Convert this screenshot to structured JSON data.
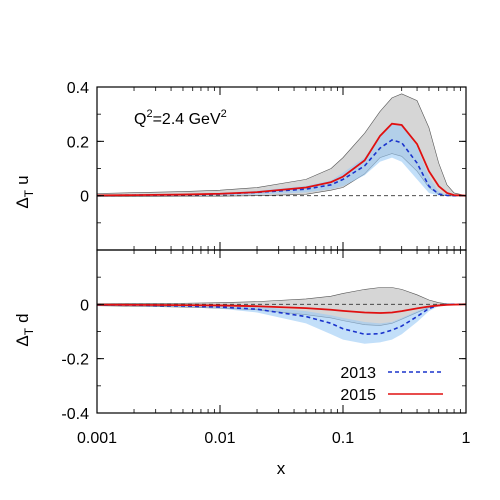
{
  "chart_data": {
    "type": "line",
    "annotation": {
      "main": "Q",
      "sup1": "2",
      "mid": "=2.4 GeV",
      "sup2": "2"
    },
    "x_axis": {
      "label": "x",
      "scale": "log",
      "range": [
        0.001,
        1
      ],
      "ticks": [
        0.001,
        0.01,
        0.1,
        1
      ],
      "tick_labels": [
        "0.001",
        "0.01",
        "0.1",
        "1"
      ]
    },
    "legend": {
      "placement": "bottom-right of lower panel",
      "entries": [
        {
          "label": "2013",
          "series_key": "2013"
        },
        {
          "label": "2015",
          "series_key": "2015"
        }
      ]
    },
    "series_styles": {
      "2013": {
        "color": "#1a33cc",
        "dash": true,
        "band_color": "#99c9f5"
      },
      "2015": {
        "color": "#e01010",
        "dash": false,
        "band_color": "#c8c8c8"
      }
    },
    "panels": [
      {
        "id": "upper",
        "ylabel_main": "Δ",
        "ylabel_sub": "T",
        "ylabel_flavor": "u",
        "ylim": [
          -0.2,
          0.4
        ],
        "yticks": [
          0,
          0.2,
          0.4
        ],
        "ytick_labels": [
          "0",
          "0.2",
          "0.4"
        ],
        "x": [
          0.001,
          0.002,
          0.005,
          0.01,
          0.02,
          0.05,
          0.08,
          0.1,
          0.15,
          0.2,
          0.25,
          0.3,
          0.4,
          0.5,
          0.6,
          0.7,
          0.8,
          1.0
        ],
        "series": {
          "2015": {
            "central": [
              0.001,
              0.002,
              0.004,
              0.007,
              0.013,
              0.03,
              0.05,
              0.07,
              0.13,
              0.22,
              0.265,
              0.26,
              0.19,
              0.09,
              0.035,
              0.01,
              0.002,
              0.0
            ],
            "band_lower": [
              -0.003,
              -0.003,
              -0.002,
              -0.002,
              0.0,
              0.005,
              0.02,
              0.03,
              0.08,
              0.14,
              0.155,
              0.145,
              0.09,
              0.03,
              0.005,
              0.0,
              -0.001,
              0.0
            ],
            "band_upper": [
              0.008,
              0.011,
              0.015,
              0.02,
              0.03,
              0.06,
              0.1,
              0.14,
              0.23,
              0.31,
              0.36,
              0.375,
              0.35,
              0.25,
              0.12,
              0.04,
              0.01,
              0.0
            ]
          },
          "2013": {
            "central": [
              0.001,
              0.002,
              0.003,
              0.006,
              0.012,
              0.024,
              0.04,
              0.06,
              0.11,
              0.175,
              0.205,
              0.195,
              0.12,
              0.035,
              0.006,
              0.001,
              0.0,
              0.0
            ],
            "band_lower": [
              -0.001,
              -0.001,
              0.0,
              0.001,
              0.004,
              0.012,
              0.024,
              0.035,
              0.075,
              0.125,
              0.14,
              0.125,
              0.06,
              0.01,
              0.0,
              0.0,
              0.0,
              0.0
            ],
            "band_upper": [
              0.003,
              0.004,
              0.006,
              0.01,
              0.018,
              0.036,
              0.056,
              0.085,
              0.14,
              0.22,
              0.265,
              0.26,
              0.18,
              0.07,
              0.015,
              0.003,
              0.0,
              0.0
            ]
          }
        }
      },
      {
        "id": "lower",
        "ylabel_main": "Δ",
        "ylabel_sub": "T",
        "ylabel_flavor": "d",
        "ylim": [
          -0.4,
          0.2
        ],
        "yticks": [
          -0.4,
          -0.2,
          0
        ],
        "ytick_labels": [
          "-0.4",
          "-0.2",
          "0"
        ],
        "x": [
          0.001,
          0.002,
          0.005,
          0.01,
          0.02,
          0.05,
          0.08,
          0.1,
          0.15,
          0.2,
          0.25,
          0.3,
          0.4,
          0.5,
          0.6,
          0.7,
          0.8,
          1.0
        ],
        "series": {
          "2015": {
            "central": [
              -0.001,
              -0.002,
              -0.003,
              -0.004,
              -0.007,
              -0.014,
              -0.02,
              -0.024,
              -0.03,
              -0.032,
              -0.03,
              -0.025,
              -0.015,
              -0.008,
              -0.004,
              -0.002,
              -0.001,
              0.0
            ],
            "band_lower": [
              -0.005,
              -0.007,
              -0.01,
              -0.014,
              -0.02,
              -0.038,
              -0.05,
              -0.06,
              -0.075,
              -0.078,
              -0.07,
              -0.055,
              -0.03,
              -0.012,
              -0.004,
              -0.001,
              0.0,
              0.0
            ],
            "band_upper": [
              0.002,
              0.003,
              0.004,
              0.006,
              0.01,
              0.02,
              0.03,
              0.04,
              0.055,
              0.062,
              0.062,
              0.055,
              0.035,
              0.016,
              0.006,
              0.002,
              0.0,
              0.0
            ]
          },
          "2013": {
            "central": [
              -0.002,
              -0.003,
              -0.006,
              -0.01,
              -0.018,
              -0.045,
              -0.07,
              -0.09,
              -0.11,
              -0.108,
              -0.095,
              -0.08,
              -0.045,
              -0.015,
              -0.004,
              -0.001,
              0.0,
              0.0
            ],
            "band_lower": [
              -0.004,
              -0.006,
              -0.01,
              -0.016,
              -0.03,
              -0.07,
              -0.11,
              -0.13,
              -0.145,
              -0.14,
              -0.13,
              -0.11,
              -0.065,
              -0.025,
              -0.006,
              -0.001,
              0.0,
              0.0
            ],
            "band_upper": [
              0.0,
              0.0,
              -0.002,
              -0.004,
              -0.008,
              -0.025,
              -0.04,
              -0.05,
              -0.065,
              -0.07,
              -0.065,
              -0.05,
              -0.025,
              -0.008,
              -0.002,
              0.0,
              0.0,
              0.0
            ]
          }
        }
      }
    ]
  }
}
